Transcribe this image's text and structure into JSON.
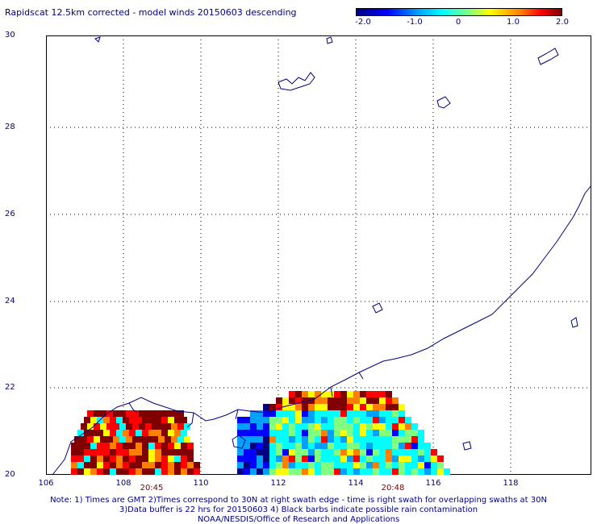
{
  "title": "Rapidscat 12.5km corrected - model winds 20150603 descending",
  "colorbar": {
    "ticks": [
      "-2.0",
      "-1.0",
      "0",
      "1.0",
      "2.0"
    ],
    "colors": [
      "#000080",
      "#0000ff",
      "#00a0ff",
      "#00ffff",
      "#80ff80",
      "#ffff00",
      "#ff8000",
      "#ff0000",
      "#800000"
    ]
  },
  "axes": {
    "lat_labels": [
      "30",
      "28",
      "26",
      "24",
      "22",
      "20"
    ],
    "lon_labels": [
      "106",
      "108",
      "110",
      "112",
      "114",
      "116",
      "118"
    ]
  },
  "swath_times": [
    "20:45",
    "20:48"
  ],
  "notes": [
    "Note: 1) Times are GMT 2)Times correspond to 30N at right swath edge - time is right swath for overlapping swaths at 30N",
    "3)Data buffer is 22 hrs for 20150603 4) Black barbs indicate possible rain contamination",
    "NOAA/NESDIS/Office of Research and Applications"
  ]
}
